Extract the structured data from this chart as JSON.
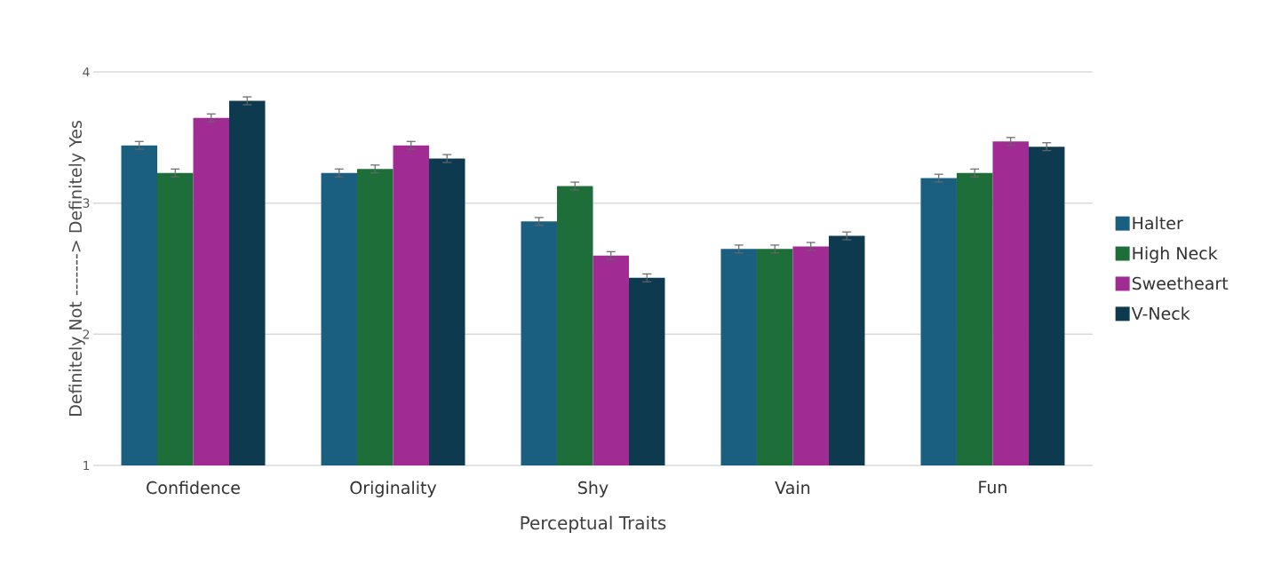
{
  "chart_data": {
    "type": "bar",
    "xlabel": "Perceptual Traits",
    "ylabel": "Definitely Not -------> Definitely Yes",
    "categories": [
      "Confidence",
      "Originality",
      "Shy",
      "Vain",
      "Fun"
    ],
    "series": [
      {
        "name": "Halter",
        "color": "#1a5e80",
        "values": [
          3.44,
          3.23,
          2.86,
          2.65,
          3.19
        ],
        "errors": [
          0.03,
          0.03,
          0.03,
          0.03,
          0.03
        ]
      },
      {
        "name": "High Neck",
        "color": "#1e6e3a",
        "values": [
          3.23,
          3.26,
          3.13,
          2.65,
          3.23
        ],
        "errors": [
          0.03,
          0.03,
          0.03,
          0.03,
          0.03
        ]
      },
      {
        "name": "Sweetheart",
        "color": "#a02b93",
        "values": [
          3.65,
          3.44,
          2.6,
          2.67,
          3.47
        ],
        "errors": [
          0.03,
          0.03,
          0.03,
          0.03,
          0.03
        ]
      },
      {
        "name": "V-Neck",
        "color": "#0e3a4f",
        "values": [
          3.78,
          3.34,
          2.43,
          2.75,
          3.43
        ],
        "errors": [
          0.03,
          0.03,
          0.03,
          0.03,
          0.03
        ]
      }
    ],
    "ylim": [
      1,
      4
    ],
    "yticks": [
      1,
      2,
      3,
      4
    ],
    "grid": "y",
    "legend": "right"
  }
}
